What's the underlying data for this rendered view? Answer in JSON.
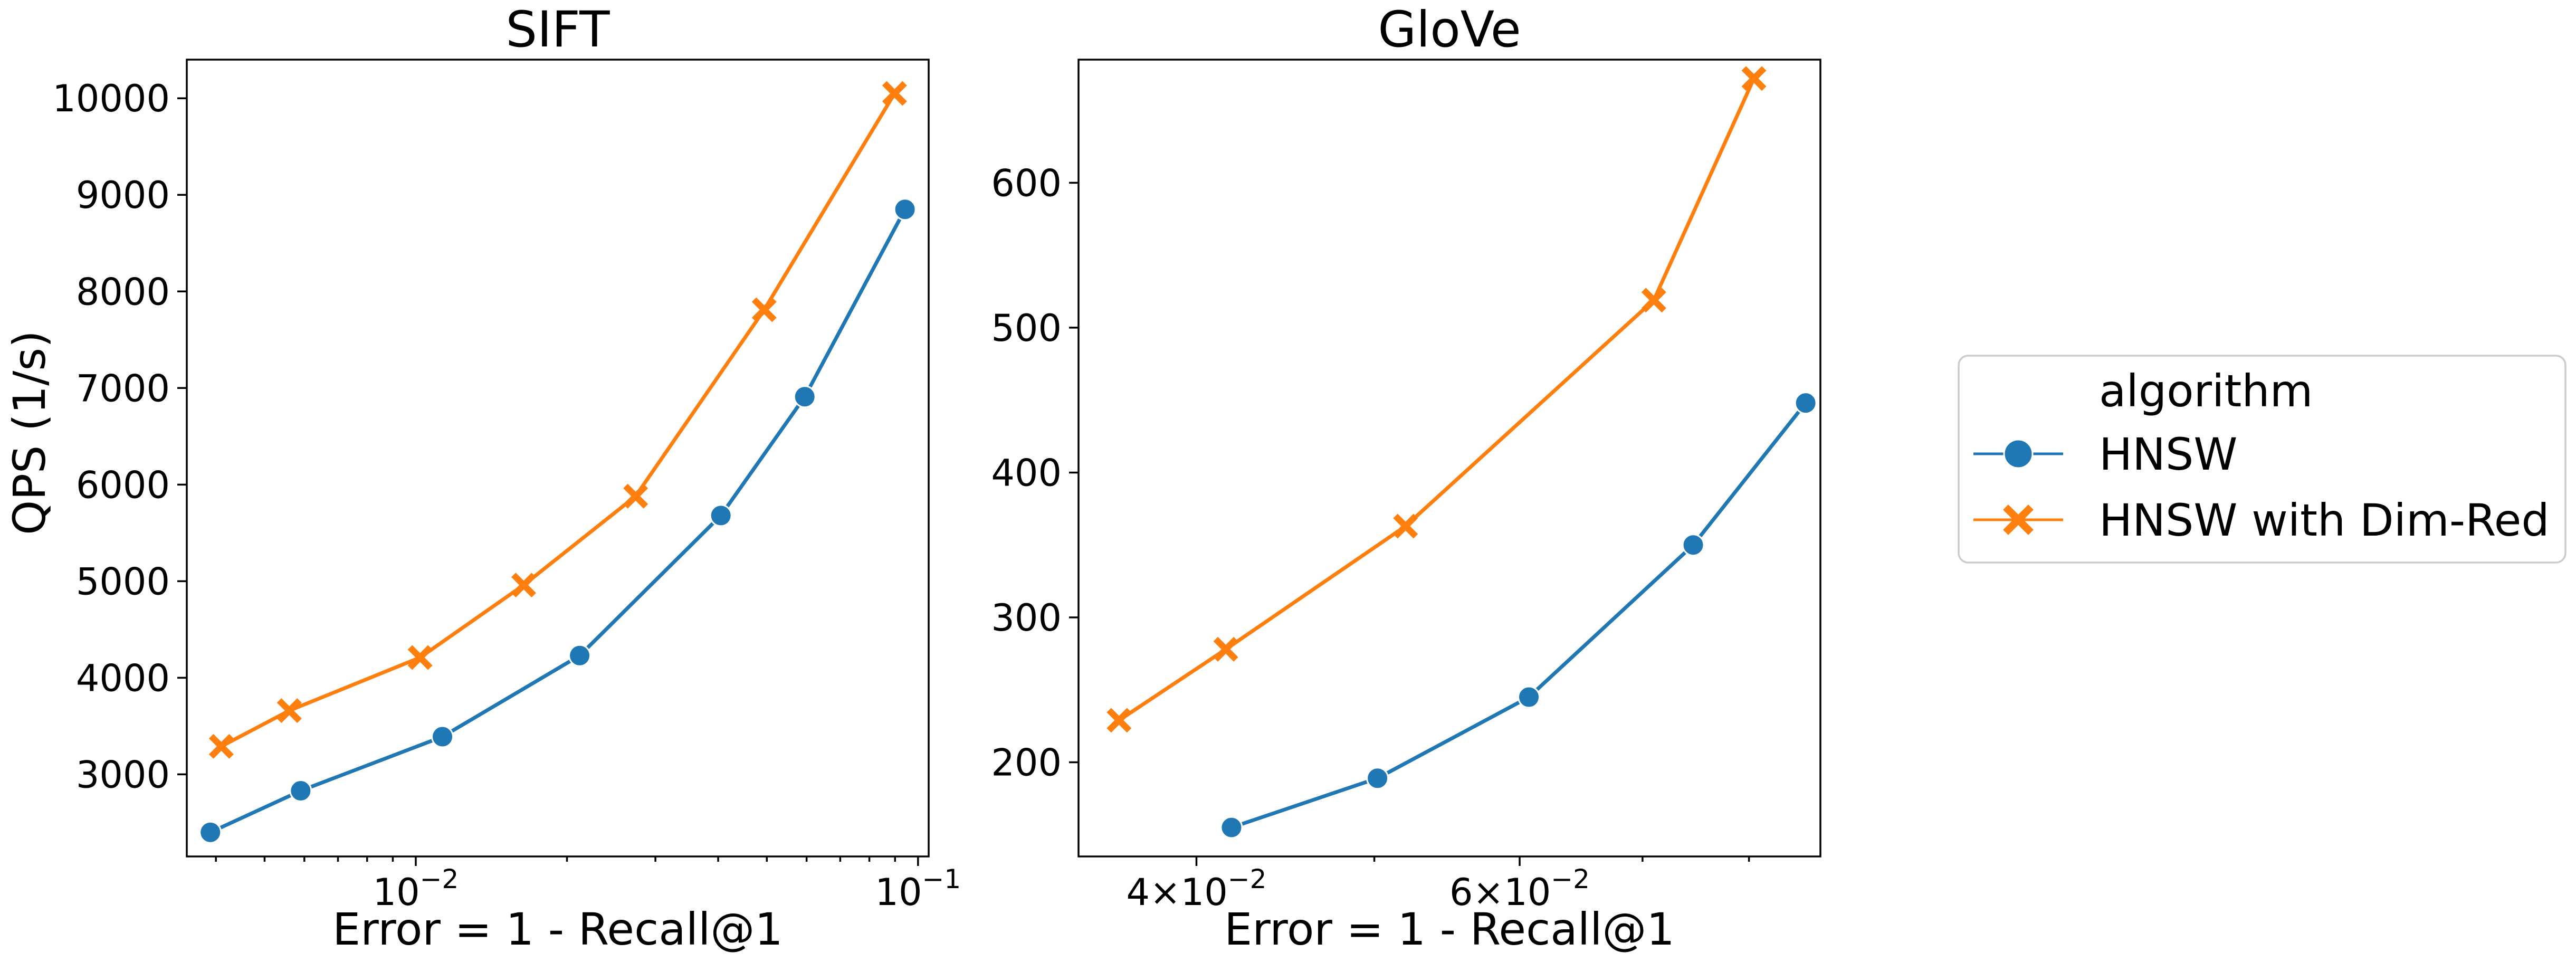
{
  "chart_data": [
    {
      "type": "line",
      "title": "SIFT",
      "xlabel": "Error = 1 - Recall@1",
      "ylabel": "QPS (1/s)",
      "xscale": "log",
      "xlim": [
        0.0035,
        0.105
      ],
      "ylim": [
        2150,
        10400
      ],
      "xticks": [
        {
          "value": 0.01,
          "base": "10",
          "exp": "−2"
        },
        {
          "value": 0.1,
          "base": "10",
          "exp": "−1"
        }
      ],
      "yticks": [
        3000,
        4000,
        5000,
        6000,
        7000,
        8000,
        9000,
        10000
      ],
      "series": [
        {
          "name": "HNSW",
          "color": "#1f77b4",
          "marker": "circle",
          "x": [
            0.0039,
            0.0059,
            0.0113,
            0.0212,
            0.0405,
            0.0595,
            0.0942
          ],
          "y": [
            2400,
            2830,
            3390,
            4230,
            5680,
            6910,
            8850
          ]
        },
        {
          "name": "HNSW with Dim-Red",
          "color": "#ff7f0e",
          "marker": "x",
          "x": [
            0.0041,
            0.0056,
            0.0102,
            0.0164,
            0.0274,
            0.0494,
            0.0898
          ],
          "y": [
            3290,
            3660,
            4210,
            4960,
            5880,
            7810,
            10050
          ]
        }
      ]
    },
    {
      "type": "line",
      "title": "GloVe",
      "xlabel": "Error = 1 - Recall@1",
      "ylabel": "",
      "xscale": "log",
      "xlim": [
        0.0345,
        0.0875
      ],
      "ylim": [
        135,
        685
      ],
      "xticks": [
        {
          "value": 0.04,
          "base": "4×10",
          "exp": "−2"
        },
        {
          "value": 0.06,
          "base": "6×10",
          "exp": "−2"
        }
      ],
      "yticks": [
        200,
        300,
        400,
        500,
        600
      ],
      "series": [
        {
          "name": "HNSW",
          "color": "#1f77b4",
          "marker": "circle",
          "x": [
            0.0418,
            0.0502,
            0.0607,
            0.0746,
            0.0859
          ],
          "y": [
            155,
            189,
            245,
            350,
            448
          ]
        },
        {
          "name": "HNSW with Dim-Red",
          "color": "#ff7f0e",
          "marker": "x",
          "x": [
            0.0363,
            0.0415,
            0.052,
            0.071,
            0.0805
          ],
          "y": [
            229,
            278,
            363,
            519,
            672
          ]
        }
      ]
    }
  ],
  "legend": {
    "title": "algorithm",
    "placement": "right",
    "items": [
      {
        "label": "HNSW",
        "color": "#1f77b4",
        "marker": "circle"
      },
      {
        "label": "HNSW with Dim-Red",
        "color": "#ff7f0e",
        "marker": "x"
      }
    ]
  }
}
